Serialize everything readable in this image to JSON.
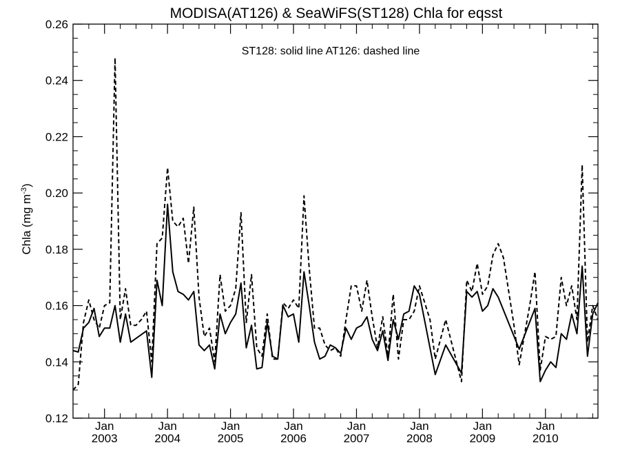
{
  "chart_data": {
    "type": "line",
    "title": "MODISA(AT126) & SeaWiFS(ST128)  Chla for eqsst",
    "annotation": "ST128: solid line   AT126: dashed line",
    "ylabel": "Chla (mg m",
    "ylabel_sup": "-3",
    "ylabel_close": ")",
    "ylim": [
      0.12,
      0.26
    ],
    "yticks": [
      0.12,
      0.14,
      0.16,
      0.18,
      0.2,
      0.22,
      0.24,
      0.26
    ],
    "ytick_labels": [
      "0.12",
      "0.14",
      "0.16",
      "0.18",
      "0.20",
      "0.22",
      "0.24",
      "0.26"
    ],
    "xlim": [
      "2002-07",
      "2010-11"
    ],
    "xticks": [
      {
        "month": "Jan",
        "year": "2003",
        "date": "2003-01"
      },
      {
        "month": "Jan",
        "year": "2004",
        "date": "2004-01"
      },
      {
        "month": "Jan",
        "year": "2005",
        "date": "2005-01"
      },
      {
        "month": "Jan",
        "year": "2006",
        "date": "2006-01"
      },
      {
        "month": "Jan",
        "year": "2007",
        "date": "2007-01"
      },
      {
        "month": "Jan",
        "year": "2008",
        "date": "2008-01"
      },
      {
        "month": "Jan",
        "year": "2009",
        "date": "2009-01"
      },
      {
        "month": "Jan",
        "year": "2010",
        "date": "2010-01"
      }
    ],
    "grid": false,
    "series": [
      {
        "name": "ST128",
        "style": "solid",
        "color": "#000000",
        "points": [
          [
            "2002-07",
            0.144
          ],
          [
            "2002-08",
            0.1435
          ],
          [
            "2002-09",
            0.152
          ],
          [
            "2002-10",
            0.154
          ],
          [
            "2002-11",
            0.159
          ],
          [
            "2002-12",
            0.149
          ],
          [
            "2003-01",
            0.152
          ],
          [
            "2003-02",
            0.152
          ],
          [
            "2003-03",
            0.16
          ],
          [
            "2003-04",
            0.147
          ],
          [
            "2003-05",
            0.157
          ],
          [
            "2003-06",
            0.147
          ],
          [
            "2003-09",
            0.151
          ],
          [
            "2003-10",
            0.1345
          ],
          [
            "2003-11",
            0.169
          ],
          [
            "2003-12",
            0.16
          ],
          [
            "2004-01",
            0.196
          ],
          [
            "2004-02",
            0.172
          ],
          [
            "2004-03",
            0.165
          ],
          [
            "2004-04",
            0.164
          ],
          [
            "2004-05",
            0.162
          ],
          [
            "2004-06",
            0.165
          ],
          [
            "2004-07",
            0.146
          ],
          [
            "2004-08",
            0.144
          ],
          [
            "2004-09",
            0.146
          ],
          [
            "2004-10",
            0.1375
          ],
          [
            "2004-11",
            0.157
          ],
          [
            "2004-12",
            0.15
          ],
          [
            "2005-01",
            0.154
          ],
          [
            "2005-02",
            0.157
          ],
          [
            "2005-03",
            0.168
          ],
          [
            "2005-04",
            0.145
          ],
          [
            "2005-05",
            0.153
          ],
          [
            "2005-06",
            0.1375
          ],
          [
            "2005-07",
            0.138
          ],
          [
            "2005-08",
            0.154
          ],
          [
            "2005-09",
            0.142
          ],
          [
            "2005-10",
            0.141
          ],
          [
            "2005-11",
            0.16
          ],
          [
            "2005-12",
            0.156
          ],
          [
            "2006-01",
            0.157
          ],
          [
            "2006-02",
            0.147
          ],
          [
            "2006-03",
            0.172
          ],
          [
            "2006-04",
            0.16
          ],
          [
            "2006-05",
            0.147
          ],
          [
            "2006-06",
            0.141
          ],
          [
            "2006-07",
            0.142
          ],
          [
            "2006-08",
            0.146
          ],
          [
            "2006-09",
            0.145
          ],
          [
            "2006-10",
            0.143
          ],
          [
            "2006-11",
            0.152
          ],
          [
            "2006-12",
            0.148
          ],
          [
            "2007-01",
            0.152
          ],
          [
            "2007-02",
            0.153
          ],
          [
            "2007-03",
            0.156
          ],
          [
            "2007-04",
            0.148
          ],
          [
            "2007-05",
            0.144
          ],
          [
            "2007-06",
            0.151
          ],
          [
            "2007-07",
            0.1405
          ],
          [
            "2007-08",
            0.155
          ],
          [
            "2007-09",
            0.148
          ],
          [
            "2007-10",
            0.157
          ],
          [
            "2007-11",
            0.158
          ],
          [
            "2007-12",
            0.167
          ],
          [
            "2008-01",
            0.164
          ],
          [
            "2008-04",
            0.1355
          ],
          [
            "2008-06",
            0.146
          ],
          [
            "2008-09",
            0.136
          ],
          [
            "2008-10",
            0.165
          ],
          [
            "2008-11",
            0.163
          ],
          [
            "2008-12",
            0.165
          ],
          [
            "2009-01",
            0.158
          ],
          [
            "2009-02",
            0.16
          ],
          [
            "2009-03",
            0.166
          ],
          [
            "2009-04",
            0.163
          ],
          [
            "2009-08",
            0.1445
          ],
          [
            "2009-11",
            0.159
          ],
          [
            "2009-12",
            0.133
          ],
          [
            "2010-01",
            0.137
          ],
          [
            "2010-02",
            0.14
          ],
          [
            "2010-03",
            0.138
          ],
          [
            "2010-04",
            0.15
          ],
          [
            "2010-05",
            0.148
          ],
          [
            "2010-06",
            0.157
          ],
          [
            "2010-07",
            0.15
          ],
          [
            "2010-08",
            0.174
          ],
          [
            "2010-09",
            0.142
          ],
          [
            "2010-10",
            0.157
          ],
          [
            "2010-11",
            0.161
          ]
        ]
      },
      {
        "name": "AT126",
        "style": "dashed",
        "color": "#000000",
        "points": [
          [
            "2002-07",
            0.13
          ],
          [
            "2002-08",
            0.132
          ],
          [
            "2002-09",
            0.154
          ],
          [
            "2002-10",
            0.162
          ],
          [
            "2002-11",
            0.155
          ],
          [
            "2002-12",
            0.152
          ],
          [
            "2003-01",
            0.16
          ],
          [
            "2003-02",
            0.161
          ],
          [
            "2003-03",
            0.248
          ],
          [
            "2003-04",
            0.155
          ],
          [
            "2003-05",
            0.166
          ],
          [
            "2003-06",
            0.153
          ],
          [
            "2003-07",
            0.153
          ],
          [
            "2003-08",
            0.155
          ],
          [
            "2003-09",
            0.158
          ],
          [
            "2003-10",
            0.14
          ],
          [
            "2003-11",
            0.182
          ],
          [
            "2003-12",
            0.184
          ],
          [
            "2004-01",
            0.209
          ],
          [
            "2004-02",
            0.19
          ],
          [
            "2004-03",
            0.188
          ],
          [
            "2004-04",
            0.191
          ],
          [
            "2004-05",
            0.175
          ],
          [
            "2004-06",
            0.195
          ],
          [
            "2004-07",
            0.163
          ],
          [
            "2004-08",
            0.149
          ],
          [
            "2004-09",
            0.152
          ],
          [
            "2004-10",
            0.14
          ],
          [
            "2004-11",
            0.171
          ],
          [
            "2004-12",
            0.158
          ],
          [
            "2005-01",
            0.16
          ],
          [
            "2005-02",
            0.166
          ],
          [
            "2005-03",
            0.193
          ],
          [
            "2005-04",
            0.154
          ],
          [
            "2005-05",
            0.171
          ],
          [
            "2005-06",
            0.145
          ],
          [
            "2005-07",
            0.142
          ],
          [
            "2005-08",
            0.157
          ],
          [
            "2005-09",
            0.141
          ],
          [
            "2005-10",
            0.141
          ],
          [
            "2005-11",
            0.161
          ],
          [
            "2005-12",
            0.159
          ],
          [
            "2006-01",
            0.162
          ],
          [
            "2006-02",
            0.159
          ],
          [
            "2006-03",
            0.199
          ],
          [
            "2006-04",
            0.173
          ],
          [
            "2006-05",
            0.152
          ],
          [
            "2006-06",
            0.152
          ],
          [
            "2006-07",
            0.146
          ],
          [
            "2006-08",
            0.144
          ],
          [
            "2006-09",
            0.145
          ],
          [
            "2006-10",
            0.142
          ],
          [
            "2006-11",
            0.155
          ],
          [
            "2006-12",
            0.167
          ],
          [
            "2007-01",
            0.167
          ],
          [
            "2007-02",
            0.158
          ],
          [
            "2007-03",
            0.169
          ],
          [
            "2007-04",
            0.156
          ],
          [
            "2007-05",
            0.145
          ],
          [
            "2007-06",
            0.156
          ],
          [
            "2007-07",
            0.142
          ],
          [
            "2007-08",
            0.164
          ],
          [
            "2007-09",
            0.141
          ],
          [
            "2007-10",
            0.155
          ],
          [
            "2007-11",
            0.155
          ],
          [
            "2007-12",
            0.158
          ],
          [
            "2008-01",
            0.167
          ],
          [
            "2008-03",
            0.155
          ],
          [
            "2008-04",
            0.141
          ],
          [
            "2008-06",
            0.155
          ],
          [
            "2008-09",
            0.133
          ],
          [
            "2008-10",
            0.169
          ],
          [
            "2008-11",
            0.165
          ],
          [
            "2008-12",
            0.175
          ],
          [
            "2009-01",
            0.164
          ],
          [
            "2009-02",
            0.167
          ],
          [
            "2009-03",
            0.178
          ],
          [
            "2009-04",
            0.182
          ],
          [
            "2009-05",
            0.177
          ],
          [
            "2009-07",
            0.153
          ],
          [
            "2009-08",
            0.139
          ],
          [
            "2009-10",
            0.16
          ],
          [
            "2009-11",
            0.172
          ],
          [
            "2009-12",
            0.137
          ],
          [
            "2010-01",
            0.149
          ],
          [
            "2010-02",
            0.148
          ],
          [
            "2010-03",
            0.149
          ],
          [
            "2010-04",
            0.17
          ],
          [
            "2010-05",
            0.16
          ],
          [
            "2010-06",
            0.167
          ],
          [
            "2010-07",
            0.155
          ],
          [
            "2010-08",
            0.21
          ],
          [
            "2010-09",
            0.147
          ],
          [
            "2010-10",
            0.16
          ],
          [
            "2010-11",
            0.155
          ]
        ]
      }
    ]
  }
}
